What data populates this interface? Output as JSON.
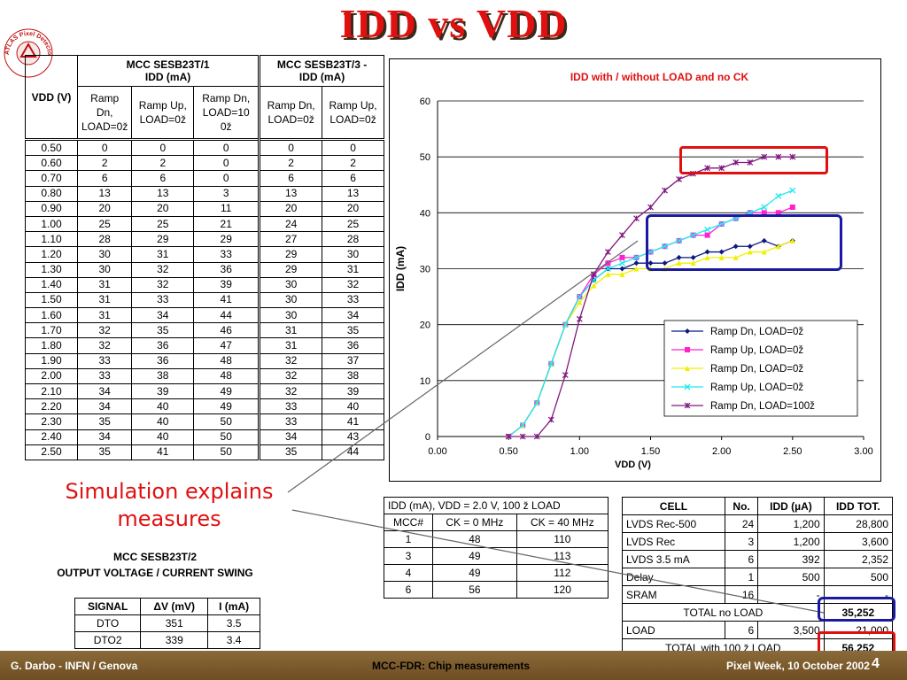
{
  "title": "IDD vs VDD",
  "logo": {
    "icon": "atlas-pixel-collaboration-logo",
    "text": "ATLAS Pixel Detector Collaboration"
  },
  "table1": {
    "group1": "MCC SESB23T/1",
    "group1_sub": "IDD (mA)",
    "group2": "MCC SESB23T/3 -",
    "group2_sub": "IDD (mA)",
    "col_vdd": "VDD (V)",
    "cols": [
      "Ramp Dn, LOAD=0ž",
      "Ramp Up, LOAD=0ž",
      "Ramp Dn, LOAD=10 0ž",
      "Ramp Dn, LOAD=0ž",
      "Ramp Up, LOAD=0ž"
    ],
    "rows": [
      [
        "0.50",
        "0",
        "0",
        "0",
        "0",
        "0"
      ],
      [
        "0.60",
        "2",
        "2",
        "0",
        "2",
        "2"
      ],
      [
        "0.70",
        "6",
        "6",
        "0",
        "6",
        "6"
      ],
      [
        "0.80",
        "13",
        "13",
        "3",
        "13",
        "13"
      ],
      [
        "0.90",
        "20",
        "20",
        "11",
        "20",
        "20"
      ],
      [
        "1.00",
        "25",
        "25",
        "21",
        "24",
        "25"
      ],
      [
        "1.10",
        "28",
        "29",
        "29",
        "27",
        "28"
      ],
      [
        "1.20",
        "30",
        "31",
        "33",
        "29",
        "30"
      ],
      [
        "1.30",
        "30",
        "32",
        "36",
        "29",
        "31"
      ],
      [
        "1.40",
        "31",
        "32",
        "39",
        "30",
        "32"
      ],
      [
        "1.50",
        "31",
        "33",
        "41",
        "30",
        "33"
      ],
      [
        "1.60",
        "31",
        "34",
        "44",
        "30",
        "34"
      ],
      [
        "1.70",
        "32",
        "35",
        "46",
        "31",
        "35"
      ],
      [
        "1.80",
        "32",
        "36",
        "47",
        "31",
        "36"
      ],
      [
        "1.90",
        "33",
        "36",
        "48",
        "32",
        "37"
      ],
      [
        "2.00",
        "33",
        "38",
        "48",
        "32",
        "38"
      ],
      [
        "2.10",
        "34",
        "39",
        "49",
        "32",
        "39"
      ],
      [
        "2.20",
        "34",
        "40",
        "49",
        "33",
        "40"
      ],
      [
        "2.30",
        "35",
        "40",
        "50",
        "33",
        "41"
      ],
      [
        "2.40",
        "34",
        "40",
        "50",
        "34",
        "43"
      ],
      [
        "2.50",
        "35",
        "41",
        "50",
        "35",
        "44"
      ]
    ]
  },
  "chart_data": {
    "type": "line",
    "title": "IDD with / without LOAD and no CK",
    "xlabel": "VDD (V)",
    "ylabel": "IDD (mA)",
    "xlim": [
      0,
      3
    ],
    "ylim": [
      0,
      60
    ],
    "xticks": [
      "0.00",
      "0.50",
      "1.00",
      "1.50",
      "2.00",
      "2.50",
      "3.00"
    ],
    "yticks": [
      "0",
      "10",
      "20",
      "30",
      "40",
      "50",
      "60"
    ],
    "grid": "horizontal",
    "legend_position": "bottom-right",
    "x": [
      0.5,
      0.6,
      0.7,
      0.8,
      0.9,
      1.0,
      1.1,
      1.2,
      1.3,
      1.4,
      1.5,
      1.6,
      1.7,
      1.8,
      1.9,
      2.0,
      2.1,
      2.2,
      2.3,
      2.4,
      2.5
    ],
    "series": [
      {
        "name": "Ramp Dn, LOAD=0ž",
        "color": "#0a1a80",
        "marker": "diamond",
        "values": [
          0,
          2,
          6,
          13,
          20,
          25,
          28,
          30,
          30,
          31,
          31,
          31,
          32,
          32,
          33,
          33,
          34,
          34,
          35,
          34,
          35
        ]
      },
      {
        "name": "Ramp Up, LOAD=0ž",
        "color": "#ff20d0",
        "marker": "square",
        "values": [
          0,
          2,
          6,
          13,
          20,
          25,
          29,
          31,
          32,
          32,
          33,
          34,
          35,
          36,
          36,
          38,
          39,
          40,
          40,
          40,
          41
        ]
      },
      {
        "name": "Ramp Dn, LOAD=0ž",
        "color": "#f0f000",
        "marker": "triangle",
        "values": [
          0,
          2,
          6,
          13,
          20,
          24,
          27,
          29,
          29,
          30,
          30,
          30,
          31,
          31,
          32,
          32,
          32,
          33,
          33,
          34,
          35
        ]
      },
      {
        "name": "Ramp Up, LOAD=0ž",
        "color": "#20e8f0",
        "marker": "x",
        "values": [
          0,
          2,
          6,
          13,
          20,
          25,
          28,
          30,
          31,
          32,
          33,
          34,
          35,
          36,
          37,
          38,
          39,
          40,
          41,
          43,
          44
        ]
      },
      {
        "name": "Ramp Dn, LOAD=100ž",
        "color": "#801880",
        "marker": "star",
        "values": [
          0,
          0,
          0,
          3,
          11,
          21,
          29,
          33,
          36,
          39,
          41,
          44,
          46,
          47,
          48,
          48,
          49,
          49,
          50,
          50,
          50
        ]
      }
    ]
  },
  "table2": {
    "title": "IDD (mA), VDD = 2.0 V, 100 ž LOAD",
    "cols": [
      "MCC#",
      "CK = 0 MHz",
      "CK = 40 MHz"
    ],
    "rows": [
      [
        "1",
        "48",
        "110"
      ],
      [
        "3",
        "49",
        "113"
      ],
      [
        "4",
        "49",
        "112"
      ],
      [
        "6",
        "56",
        "120"
      ]
    ]
  },
  "table3": {
    "cols": [
      "CELL",
      "No.",
      "IDD (µA)",
      "IDD TOT."
    ],
    "rows": [
      [
        "LVDS Rec-500",
        "24",
        "1,200",
        "28,800"
      ],
      [
        "LVDS Rec",
        "3",
        "1,200",
        "3,600"
      ],
      [
        "LVDS 3.5 mA",
        "6",
        "392",
        "2,352"
      ],
      [
        "Delay",
        "1",
        "500",
        "500"
      ],
      [
        "SRAM",
        "16",
        "-",
        "-"
      ]
    ],
    "total_no_load_label": "TOTAL no LOAD",
    "total_no_load": "35,252",
    "load_row": [
      "LOAD",
      "6",
      "3,500",
      "21,000"
    ],
    "total_with_load_label": "TOTAL with 100 ž LOAD",
    "total_with_load": "56,252"
  },
  "sim_note": [
    "Simulation explains",
    "measures"
  ],
  "mcc2_title": [
    "MCC SESB23T/2",
    "OUTPUT VOLTAGE / CURRENT SWING"
  ],
  "table4": {
    "cols": [
      "SIGNAL",
      "ΔV (mV)",
      "I (mA)"
    ],
    "rows": [
      [
        "DTO",
        "351",
        "3.5"
      ],
      [
        "DTO2",
        "339",
        "3.4"
      ]
    ]
  },
  "footer": {
    "left": "G. Darbo - INFN / Genova",
    "center": "MCC-FDR: Chip measurements",
    "right": "Pixel Week, 10 October 2002",
    "page": "4"
  }
}
